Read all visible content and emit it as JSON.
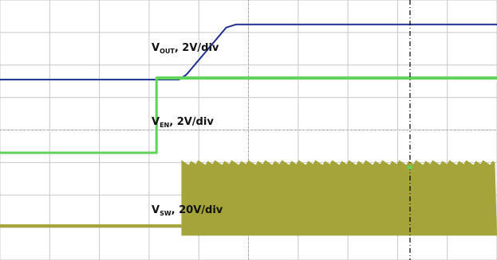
{
  "chart_data": {
    "type": "line",
    "title": "",
    "xlabel": "",
    "ylabel": "",
    "grid": true,
    "grid_divisions": {
      "x": 10,
      "y": 8
    },
    "colors": {
      "vout": "#1f2f8f",
      "ven": "#5fd35a",
      "vsw": "#a5a43b",
      "cursor": "#000000",
      "grid": "#c8c8c8"
    },
    "series": [
      {
        "name": "V_OUT, 2V/div",
        "label_main": "V",
        "label_sub": "OUT",
        "label_rest": ", 2V/div",
        "color": "#1f2f8f",
        "x": [
          0,
          3.6,
          3.75,
          4.55,
          4.75,
          10
        ],
        "y": [
          5.55,
          5.55,
          5.7,
          7.15,
          7.25,
          7.25
        ]
      },
      {
        "name": "V_EN, 2V/div",
        "label_main": "V",
        "label_sub": "EN",
        "label_rest": ", 2V/div",
        "color": "#5fd35a",
        "x": [
          0,
          3.15,
          3.15,
          10
        ],
        "y": [
          3.3,
          3.3,
          5.6,
          5.6
        ]
      },
      {
        "name": "V_SW, 20V/div",
        "label_main": "V",
        "label_sub": "SW",
        "label_rest": ", 20V/div",
        "color": "#a5a43b",
        "x": [
          0,
          3.65,
          3.65,
          10
        ],
        "y": [
          1.05,
          1.05,
          3.0,
          3.0
        ],
        "band_bottom": 0.75
      }
    ],
    "cursor_x": 8.25
  }
}
